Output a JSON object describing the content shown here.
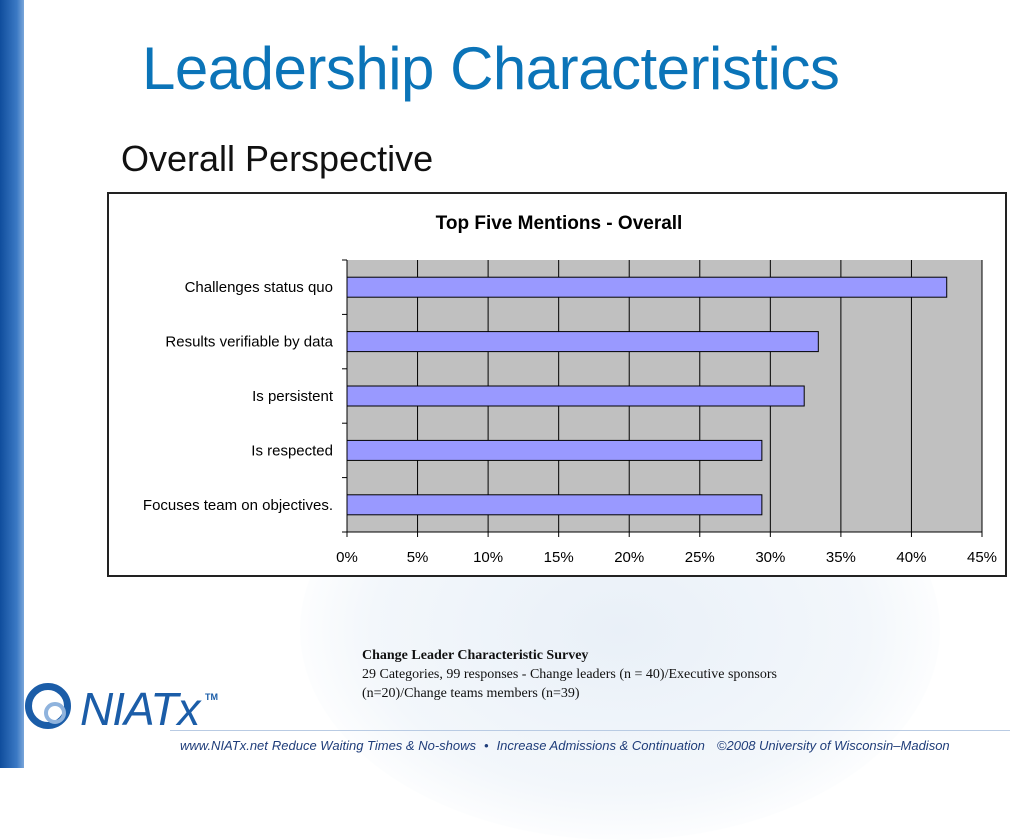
{
  "slide": {
    "title": "Leadership Characteristics",
    "subtitle": "Overall Perspective"
  },
  "chart_data": {
    "type": "bar",
    "orientation": "horizontal",
    "title": "Top Five Mentions - Overall",
    "categories": [
      "Challenges status quo",
      "Results verifiable by data",
      "Is persistent",
      "Is respected",
      "Focuses team on objectives."
    ],
    "values": [
      42.5,
      33.4,
      32.4,
      29.4,
      29.4
    ],
    "xlim": [
      0,
      45
    ],
    "xticks": [
      "0%",
      "5%",
      "10%",
      "15%",
      "20%",
      "25%",
      "30%",
      "35%",
      "40%",
      "45%"
    ],
    "xlabel": "",
    "ylabel": "",
    "grid": true,
    "bar_color": "#9999ff",
    "plot_background": "#c0c0c0"
  },
  "note": {
    "title": "Change Leader Characteristic Survey",
    "line1": "29 Categories, 99 responses - Change leaders (n = 40)/Executive sponsors",
    "line2": "(n=20)/Change teams members (n=39)"
  },
  "logo": {
    "text": "NIATx",
    "tm": "TM"
  },
  "footer": {
    "url": "www.NIATx.net",
    "tagline1": "Reduce Waiting Times & No-shows",
    "bullet": "•",
    "tagline2": "Increase Admissions & Continuation",
    "copyright": "©2008 University of Wisconsin–Madison"
  }
}
